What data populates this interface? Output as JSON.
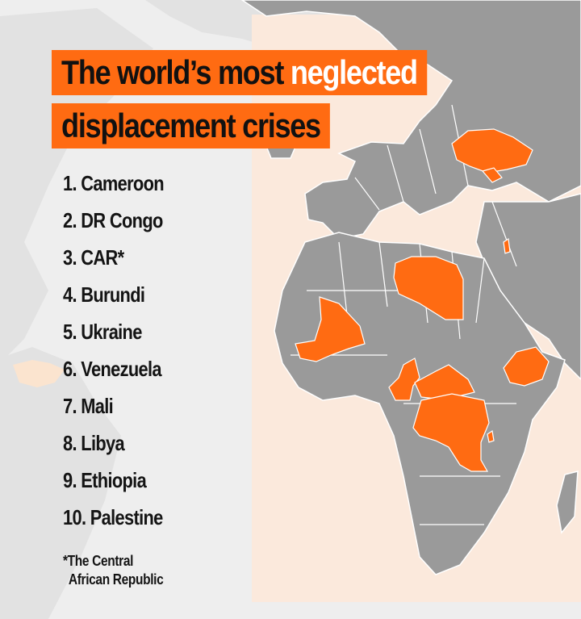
{
  "title": {
    "line1_prefix": "The world’s most ",
    "line1_highlight": "neglected",
    "line2": "displacement crises"
  },
  "rankings": [
    {
      "rank": "1.",
      "country": "Cameroon"
    },
    {
      "rank": "2.",
      "country": "DR Congo"
    },
    {
      "rank": "3.",
      "country": "CAR*"
    },
    {
      "rank": "4.",
      "country": "Burundi"
    },
    {
      "rank": "5.",
      "country": "Ukraine"
    },
    {
      "rank": "6.",
      "country": "Venezuela"
    },
    {
      "rank": "7.",
      "country": "Mali"
    },
    {
      "rank": "8.",
      "country": "Libya"
    },
    {
      "rank": "9.",
      "country": "Ethiopia"
    },
    {
      "rank": "10.",
      "country": "Palestine"
    }
  ],
  "footnote": {
    "line1": "*The Central",
    "line2": "African Republic"
  },
  "colors": {
    "highlight": "#ff6b12",
    "land": "#9a9a9a",
    "background_land": "#e6e6e6",
    "panel": "#fbe9dc"
  },
  "highlighted_countries": [
    "Ukraine",
    "Libya",
    "Mali",
    "Cameroon",
    "CAR",
    "DR Congo",
    "Burundi",
    "Ethiopia",
    "Palestine",
    "Venezuela"
  ]
}
